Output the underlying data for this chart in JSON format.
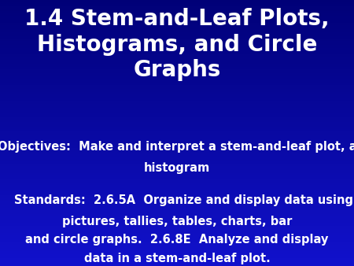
{
  "title_line1": "1.4 Stem-and-Leaf Plots,",
  "title_line2": "Histograms, and Circle",
  "title_line3": "Graphs",
  "objectives_line1": "Objectives:  Make and interpret a stem-and-leaf plot, a",
  "objectives_line2": "histogram",
  "standards_line1": "Standards:  2.6.5A  Organize and display data using",
  "standards_line2": "pictures, tallies, tables, charts, bar",
  "standards_line3": "and circle graphs.  2.6.8E  Analyze and display",
  "standards_line4": "data in a stem-and-leaf plot.",
  "title_color": "#ffffff",
  "body_color": "#ffffff",
  "title_fontsize": 20,
  "body_fontsize": 10.5,
  "fig_width": 4.5,
  "fig_height": 3.38,
  "dpi": 100
}
